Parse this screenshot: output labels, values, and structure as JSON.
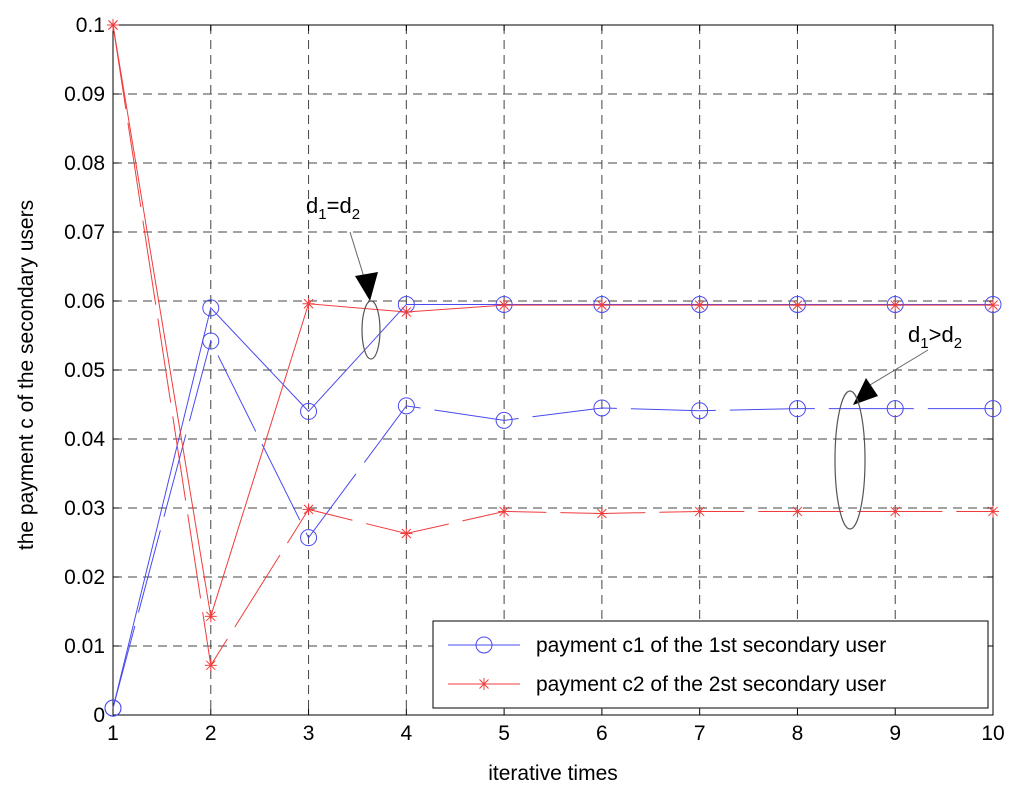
{
  "chart_data": {
    "type": "line",
    "xlabel": "iterative times",
    "ylabel": "the payment c of the secondary users",
    "xlim": [
      1,
      10
    ],
    "ylim": [
      0,
      0.1
    ],
    "x": [
      1,
      2,
      3,
      4,
      5,
      6,
      7,
      8,
      9,
      10
    ],
    "x_ticks": [
      "1",
      "2",
      "3",
      "4",
      "5",
      "6",
      "7",
      "8",
      "9",
      "10"
    ],
    "y_ticks": [
      "0",
      "0.01",
      "0.02",
      "0.03",
      "0.04",
      "0.05",
      "0.06",
      "0.07",
      "0.08",
      "0.09",
      "0.1"
    ],
    "grid": true,
    "legend_position": "bottom-right",
    "series": [
      {
        "name": "payment c1 of the 1st secondary user",
        "marker": "circle",
        "color": "#4a4af0",
        "cases": [
          {
            "condition": "d1=d2",
            "dashed": false,
            "values": [
              0.001,
              0.059,
              0.044,
              0.0595,
              0.0595,
              0.0595,
              0.0595,
              0.0595,
              0.0595,
              0.0595
            ]
          },
          {
            "condition": "d1>d2",
            "dashed": true,
            "values": [
              0.001,
              0.0542,
              0.0257,
              0.0448,
              0.0427,
              0.0445,
              0.0441,
              0.0444,
              0.0444,
              0.0444
            ]
          }
        ]
      },
      {
        "name": "payment c2 of the 2st secondary user",
        "marker": "star",
        "color": "#f03c3c",
        "cases": [
          {
            "condition": "d1=d2",
            "dashed": false,
            "values": [
              0.1,
              0.0143,
              0.0596,
              0.0584,
              0.0594,
              0.0594,
              0.0594,
              0.0594,
              0.0594,
              0.0594
            ]
          },
          {
            "condition": "d1>d2",
            "dashed": true,
            "values": [
              0.1,
              0.0072,
              0.0298,
              0.0263,
              0.0295,
              0.0292,
              0.0295,
              0.0295,
              0.0295,
              0.0295
            ]
          }
        ]
      }
    ],
    "annotations": [
      {
        "base": "d",
        "sub1": "1",
        "op": "=",
        "sub2": "2"
      },
      {
        "base": "d",
        "sub1": "1",
        "op": ">",
        "sub2": "2"
      }
    ]
  }
}
